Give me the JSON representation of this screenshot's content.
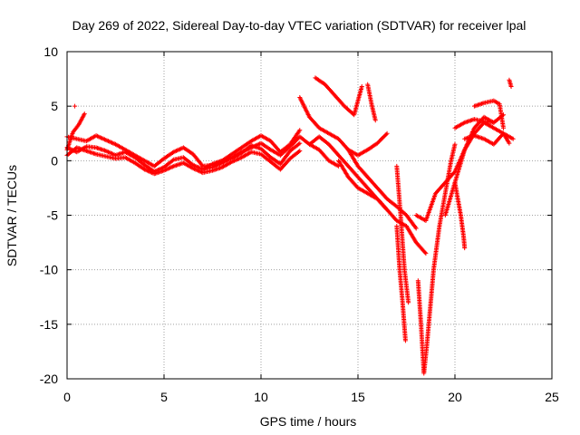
{
  "chart_data": {
    "type": "scatter",
    "title": "Day 269 of 2022, Sidereal Day-to-day VTEC variation (SDTVAR) for receiver lpal",
    "xlabel": "GPS time / hours",
    "ylabel": "SDTVAR / TECUs",
    "xlim": [
      0,
      25
    ],
    "ylim": [
      -20,
      10
    ],
    "xticks": [
      0,
      5,
      10,
      15,
      20,
      25
    ],
    "yticks": [
      -20,
      -15,
      -10,
      -5,
      0,
      5,
      10
    ],
    "grid": true,
    "marker": "+",
    "color": "#ff0000",
    "series": [
      {
        "name": "trace-1",
        "x": [
          0,
          0.5,
          1,
          1.5,
          2,
          2.5,
          3,
          3.5,
          4,
          4.5,
          5,
          5.5,
          6,
          6.5,
          7,
          7.5,
          8,
          8.5,
          9,
          9.5,
          10,
          10.5,
          11,
          11.5,
          12
        ],
        "y": [
          2.2,
          2,
          1.8,
          2.3,
          1.9,
          1.5,
          1,
          0.5,
          0,
          -0.5,
          0.2,
          0.8,
          1.2,
          0.6,
          -0.5,
          -0.4,
          0,
          0.6,
          1.2,
          1.8,
          2.3,
          1.8,
          0.8,
          1.5,
          2.8
        ]
      },
      {
        "name": "trace-2",
        "x": [
          0,
          0.5,
          1,
          1.5,
          2,
          2.5,
          3,
          3.5,
          4,
          4.5,
          5,
          5.5,
          6,
          6.5,
          7,
          7.5,
          8,
          8.5,
          9,
          9.5,
          10,
          10.5,
          11,
          11.5,
          12
        ],
        "y": [
          1.2,
          0.8,
          1.3,
          1.2,
          0.9,
          0.5,
          0.8,
          0.3,
          -0.4,
          -1,
          -0.6,
          0.1,
          0.3,
          -0.4,
          -0.8,
          -0.6,
          -0.2,
          0.3,
          0.7,
          1.4,
          1.1,
          0.3,
          -0.3,
          0.9,
          1.6
        ]
      },
      {
        "name": "trace-3",
        "x": [
          0,
          0.5,
          1,
          1.5,
          2,
          2.5,
          3,
          3.5,
          4,
          4.5,
          5,
          5.5,
          6,
          6.5,
          7,
          7.5,
          8,
          8.5,
          9,
          9.5,
          10,
          10.5,
          11,
          11.5,
          12
        ],
        "y": [
          0.5,
          1.2,
          0.9,
          0.6,
          0.4,
          0.2,
          0.3,
          -0.2,
          -0.8,
          -1.2,
          -0.9,
          -0.5,
          -0.2,
          -0.7,
          -1.1,
          -0.9,
          -0.6,
          -0.1,
          0.3,
          0.8,
          0.6,
          -0.1,
          -0.8,
          0.2,
          0.9
        ]
      },
      {
        "name": "trace-4",
        "x": [
          0,
          0.3,
          0.6,
          0.9
        ],
        "y": [
          1,
          2.6,
          3.3,
          4.3
        ]
      },
      {
        "name": "trace-5",
        "x": [
          12,
          12.5,
          13,
          13.5,
          14,
          14.5,
          15,
          15.5,
          16,
          16.5,
          17,
          17.5,
          18
        ],
        "y": [
          5.8,
          4,
          3,
          2.5,
          2,
          1,
          -0.5,
          -1.5,
          -2.5,
          -3.5,
          -4.2,
          -5,
          -6.2
        ]
      },
      {
        "name": "trace-6",
        "x": [
          12.8,
          13.3,
          13.8,
          14.3,
          14.8,
          15.2
        ],
        "y": [
          7.6,
          7,
          6,
          5,
          4.2,
          6.8
        ]
      },
      {
        "name": "trace-7",
        "x": [
          12.5,
          13,
          13.5,
          14,
          14.5,
          15,
          15.5,
          16,
          16.5
        ],
        "y": [
          1.5,
          2.2,
          1.5,
          0.5,
          -0.5,
          -1.5,
          -2.5,
          -3.5,
          -4.5
        ]
      },
      {
        "name": "trace-8",
        "x": [
          15.5,
          15.7,
          15.9
        ],
        "y": [
          7,
          5.2,
          3.7
        ]
      },
      {
        "name": "trace-9",
        "x": [
          14.5,
          15,
          15.5,
          16,
          16.5
        ],
        "y": [
          1,
          0.5,
          1,
          1.6,
          2.5
        ]
      },
      {
        "name": "trace-10",
        "x": [
          14,
          14.5,
          15,
          15.5,
          16,
          16.5,
          17,
          17.5,
          18,
          18.5
        ],
        "y": [
          0,
          -1.5,
          -2.5,
          -3,
          -3.5,
          -4.5,
          -5.5,
          -6,
          -7.5,
          -8.5
        ]
      },
      {
        "name": "trace-11",
        "x": [
          17,
          17.15,
          17.3,
          17.45
        ],
        "y": [
          -6,
          -10,
          -13,
          -16.5
        ]
      },
      {
        "name": "trace-12",
        "x": [
          17,
          17.2,
          17.4,
          17.6
        ],
        "y": [
          -0.5,
          -5,
          -10,
          -13
        ]
      },
      {
        "name": "trace-13",
        "x": [
          18.1,
          18.25,
          18.4,
          18.55,
          18.7,
          18.9,
          19.2,
          19.5,
          19.8,
          20
        ],
        "y": [
          -11,
          -15,
          -19.5,
          -17,
          -14,
          -10,
          -6,
          -3,
          0,
          1.5
        ]
      },
      {
        "name": "trace-14",
        "x": [
          18,
          18.5,
          19,
          19.5,
          20,
          20.5,
          21,
          21.5,
          22
        ],
        "y": [
          -5,
          -5.5,
          -3,
          -2,
          -1,
          1,
          3,
          4,
          3.5
        ]
      },
      {
        "name": "trace-15",
        "x": [
          19.5,
          20,
          20.5,
          21,
          21.5,
          22,
          22.5,
          23
        ],
        "y": [
          -5,
          -2,
          1,
          2.5,
          3.5,
          3,
          2.5,
          2
        ]
      },
      {
        "name": "trace-16",
        "x": [
          20,
          20.5,
          21,
          21.5,
          22,
          22.5
        ],
        "y": [
          3,
          3.5,
          3.8,
          3.6,
          3.5,
          4.2
        ]
      },
      {
        "name": "trace-17",
        "x": [
          21,
          21.5,
          22,
          22.3,
          22.5
        ],
        "y": [
          5,
          5.3,
          5.5,
          5.2,
          3
        ]
      },
      {
        "name": "trace-18",
        "x": [
          20.5,
          21,
          21.5,
          22,
          22.5,
          22.8
        ],
        "y": [
          2,
          2.3,
          2,
          1.5,
          2.5,
          1.6
        ]
      },
      {
        "name": "trace-19",
        "x": [
          20,
          20.15,
          20.3,
          20.45,
          20.5
        ],
        "y": [
          -2,
          -3.5,
          -5,
          -7,
          -8
        ]
      },
      {
        "name": "trace-20",
        "x": [
          22.8,
          22.9
        ],
        "y": [
          7.4,
          6.8
        ]
      },
      {
        "name": "trace-21",
        "x": [
          7,
          7.5,
          8,
          8.5,
          9,
          9.5,
          10,
          10.5,
          11,
          11.5,
          12,
          12.5,
          13,
          13.5,
          14
        ],
        "y": [
          -0.8,
          -0.3,
          0,
          0.2,
          0.8,
          1.2,
          1.6,
          1,
          0.5,
          1.3,
          2.2,
          1.5,
          1,
          0,
          -0.5
        ]
      },
      {
        "name": "trace-22",
        "x": [
          0.4
        ],
        "y": [
          5
        ]
      }
    ]
  }
}
